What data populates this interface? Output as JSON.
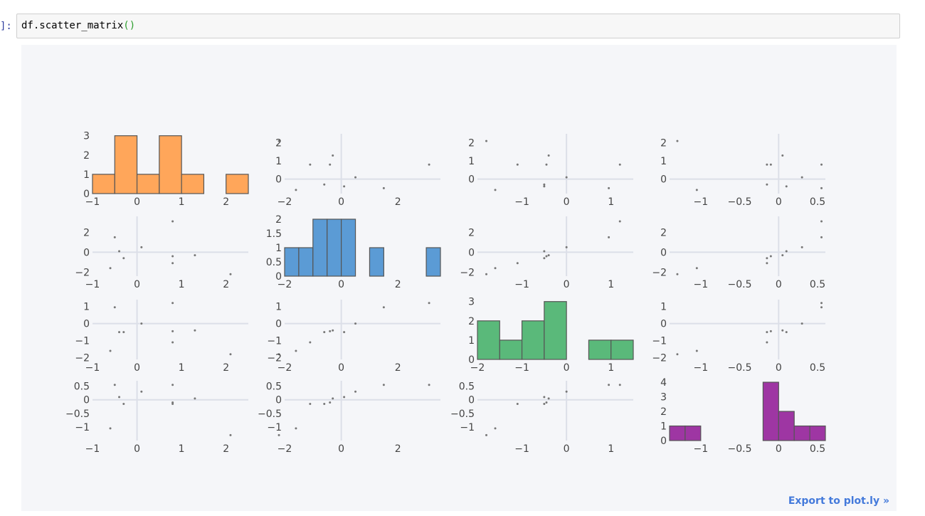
{
  "cell": {
    "prompt": "]:",
    "code_prefix": "df.scatter_matrix",
    "code_parens": "()"
  },
  "export_label": "Export to plot.ly »",
  "chart_data": {
    "type": "scatter",
    "variables": [
      {
        "values": [
          2.1,
          -0.6,
          0.8,
          -0.3,
          0.8,
          1.3,
          -0.4,
          0.1,
          -0.5,
          0.8
        ],
        "range": [
          -1,
          2.5
        ],
        "ticks": [
          -1,
          0,
          1,
          2
        ],
        "hist": {
          "bins": [
            -1,
            -0.5,
            0,
            0.5,
            1,
            1.5,
            2,
            2.5
          ],
          "counts": [
            1,
            3,
            1,
            3,
            1,
            0,
            1
          ],
          "color": "#ffa65a",
          "y_ticks": [
            0,
            1,
            2,
            3
          ],
          "y_max": 3.1
        }
      },
      {
        "values": [
          -2.2,
          -1.6,
          -1.1,
          -0.6,
          -0.4,
          -0.3,
          0.1,
          0.5,
          1.5,
          3.1
        ],
        "range": [
          -2,
          3.5
        ],
        "ticks": [
          -2,
          0,
          2
        ],
        "hist": {
          "bins": [
            -2,
            -1.5,
            -1,
            -0.5,
            0,
            0.5,
            1,
            1.5,
            2,
            2.5,
            3,
            3.5
          ],
          "counts": [
            1,
            1,
            2,
            2,
            2,
            0,
            1,
            0,
            0,
            0,
            1
          ],
          "color": "#5b9bd5",
          "y_ticks": [
            0,
            0.5,
            1,
            1.5,
            2
          ],
          "y_max": 2.1
        }
      },
      {
        "values": [
          -1.8,
          -1.6,
          -1.1,
          -0.5,
          -0.45,
          -0.4,
          -0.5,
          0,
          0.95,
          1.2
        ],
        "range": [
          -2,
          1.5
        ],
        "ticks": [
          -2,
          -1,
          0,
          1
        ],
        "tick_labels_on_scatter": [
          -1,
          0,
          1
        ],
        "hist": {
          "bins": [
            -2,
            -1.5,
            -1,
            -0.5,
            0,
            0.5,
            1,
            1.5
          ],
          "counts": [
            2,
            1,
            2,
            3,
            0,
            1,
            1
          ],
          "color": "#5ab97a",
          "y_ticks": [
            0,
            1,
            2,
            3
          ],
          "y_max": 3.1
        }
      },
      {
        "values": [
          -1.3,
          -1.05,
          -0.15,
          -0.15,
          -0.1,
          0.05,
          0.1,
          0.3,
          0.55,
          0.55
        ],
        "range": [
          -1.4,
          0.6
        ],
        "ticks": [
          -1,
          -0.5,
          0,
          0.5
        ],
        "hist": {
          "bins": [
            -1.4,
            -1.2,
            -1.0,
            -0.8,
            -0.6,
            -0.4,
            -0.2,
            0,
            0.2,
            0.4,
            0.6
          ],
          "counts": [
            1,
            1,
            0,
            0,
            0,
            0,
            4,
            2,
            1,
            1
          ],
          "color": "#9e36a3",
          "y_ticks": [
            0,
            1,
            2,
            3,
            4
          ],
          "y_max": 4.1
        }
      }
    ],
    "y_ticks_scatter": [
      [
        0,
        1,
        2
      ],
      [
        -2,
        0,
        2
      ],
      [
        -2,
        -1,
        0,
        1
      ],
      [
        -1,
        -0.5,
        0,
        0.5
      ]
    ],
    "y_ranges_scatter": [
      [
        -0.8,
        2.5
      ],
      [
        -2.4,
        3.6
      ],
      [
        -2.1,
        1.4
      ],
      [
        -1.5,
        0.7
      ]
    ],
    "grid": true
  }
}
